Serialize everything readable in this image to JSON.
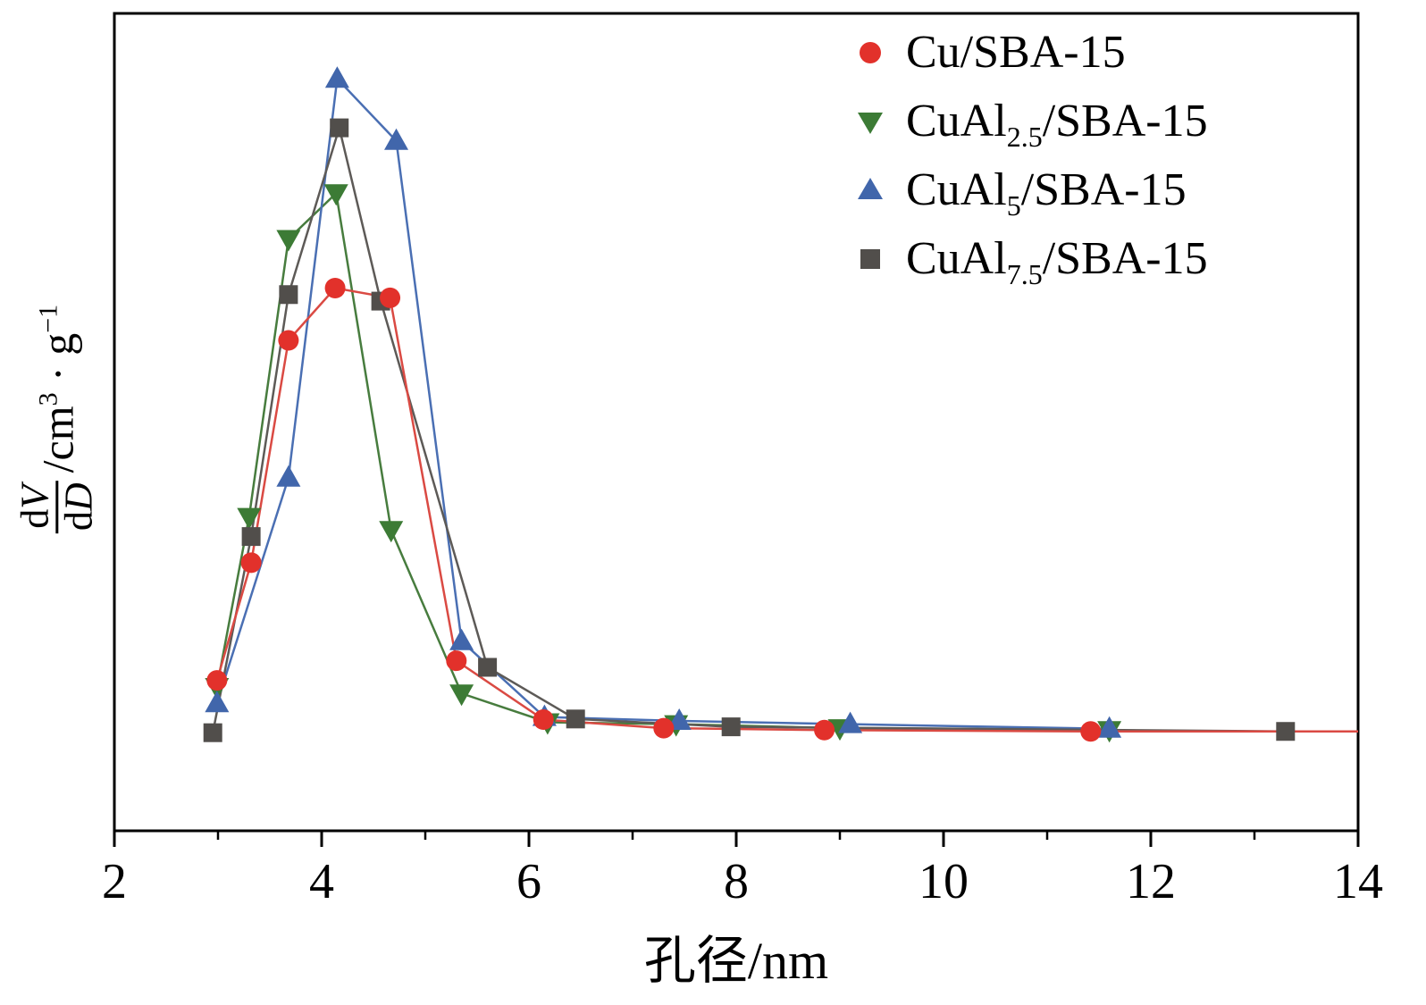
{
  "chart_data": {
    "type": "line",
    "title": "",
    "xlabel": "孔径/nm",
    "ylabel_text": "dV/dD /cm3·g-1",
    "xlim": [
      2,
      14
    ],
    "ylim": [
      -0.15,
      1.1
    ],
    "grid": false,
    "legend_position": "top-right-inside",
    "x_axis": {
      "major_ticks": [
        {
          "v": 2,
          "label": "2"
        },
        {
          "v": 4,
          "label": "4"
        },
        {
          "v": 6,
          "label": "6"
        },
        {
          "v": 8,
          "label": "8"
        },
        {
          "v": 10,
          "label": "10"
        },
        {
          "v": 12,
          "label": "12"
        },
        {
          "v": 14,
          "label": "14"
        }
      ],
      "minor_ticks": [
        3,
        5,
        7,
        9,
        11,
        13
      ]
    },
    "y_axis": {
      "ticks": [],
      "note": "no tick labels shown; values in arbitrary units"
    },
    "series": [
      {
        "name": "CuAl2.5/SBA-15",
        "marker": "triangle-down",
        "color": "#3c7b35",
        "line_color": "#477c3e",
        "x": [
          2.99,
          3.3,
          3.68,
          4.14,
          4.67,
          5.35,
          6.18,
          7.42,
          9.0,
          11.6
        ],
        "y": [
          0.07,
          0.33,
          0.755,
          0.825,
          0.31,
          0.06,
          0.016,
          0.013,
          0.007,
          0.004
        ]
      },
      {
        "name": "CuAl5/SBA-15",
        "marker": "triangle-up",
        "color": "#4166ab",
        "line_color": "#4a6fb3",
        "x": [
          2.99,
          3.68,
          4.15,
          4.72,
          5.35,
          6.15,
          7.45,
          9.1,
          11.6
        ],
        "y": [
          0.045,
          0.39,
          1.0,
          0.905,
          0.14,
          0.024,
          0.018,
          0.013,
          0.006
        ]
      },
      {
        "name": "CuAl7.5/SBA-15",
        "marker": "square",
        "color": "#514e4b",
        "line_color": "#5d5a57",
        "x": [
          2.95,
          3.32,
          3.68,
          4.17,
          4.57,
          5.6,
          6.45,
          7.95,
          13.3
        ],
        "y": [
          0.0,
          0.3,
          0.67,
          0.925,
          0.66,
          0.1,
          0.021,
          0.009,
          0.002
        ],
        "tail_x": 14.0
      },
      {
        "name": "Cu/SBA-15",
        "marker": "circle",
        "color": "#e2312b",
        "line_color": "#da4a43",
        "x": [
          2.99,
          3.32,
          3.68,
          4.13,
          4.66,
          5.3,
          6.14,
          7.3,
          8.85,
          11.42
        ],
        "y": [
          0.08,
          0.26,
          0.6,
          0.68,
          0.665,
          0.11,
          0.02,
          0.007,
          0.004,
          0.002
        ],
        "tail_x": 14.0
      }
    ]
  },
  "ylabel": {
    "d1": "d",
    "v": "V",
    "d2": "d",
    "big_d": "D",
    "unit_pre": "/cm",
    "unit_sup1": "3",
    "unit_mid": " · g",
    "unit_sup2": "−1"
  },
  "legend": {
    "items": [
      {
        "pre": "Cu/SBA-15",
        "sub": "",
        "post": "",
        "marker": "circle",
        "color": "#e2312b"
      },
      {
        "pre": "CuAl",
        "sub": "2.5",
        "post": "/SBA-15",
        "marker": "triangle-down",
        "color": "#3c7b35"
      },
      {
        "pre": "CuAl",
        "sub": "5",
        "post": "/SBA-15",
        "marker": "triangle-up",
        "color": "#4166ab"
      },
      {
        "pre": "CuAl",
        "sub": "7.5",
        "post": "/SBA-15",
        "marker": "square",
        "color": "#514e4b"
      }
    ]
  }
}
